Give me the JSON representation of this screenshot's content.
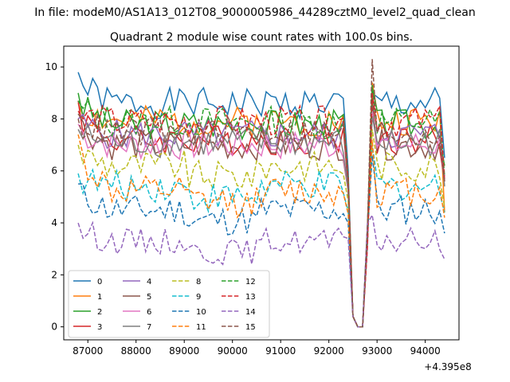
{
  "figure": {
    "suptitle": "In file: modeM0/AS1A13_012T08_9000005986_44289cztM0_level2_quad_clean",
    "offset_label": "+4.395e8"
  },
  "chart_data": {
    "type": "line",
    "title": "Quadrant 2 module wise count rates with 100.0s bins.",
    "xlabel": "",
    "ylabel": "",
    "xlim": [
      86500,
      94700
    ],
    "ylim": [
      -0.5,
      10.8
    ],
    "x_offset": 439500000,
    "x_ticks": [
      87000,
      88000,
      89000,
      90000,
      91000,
      92000,
      93000,
      94000
    ],
    "x_tick_labels": [
      "87000",
      "88000",
      "89000",
      "90000",
      "91000",
      "92000",
      "93000",
      "94000"
    ],
    "y_ticks": [
      0,
      2,
      4,
      6,
      8,
      10
    ],
    "y_tick_labels": [
      "0",
      "2",
      "4",
      "6",
      "8",
      "10"
    ],
    "grid": false,
    "legend": {
      "placement": "lower-left",
      "columns": 4
    },
    "x_start": 86800,
    "x_step": 100,
    "n_points": 77,
    "dip": {
      "x_points": [
        92400,
        92500,
        92600,
        92700,
        92800,
        92900
      ],
      "values": [
        3.5,
        0.4,
        0.0,
        0.0,
        4.5,
        null
      ]
    },
    "series": [
      {
        "name": "0",
        "color": "#1f77b4",
        "dash": "solid",
        "base": 8.6,
        "amp": 0.3,
        "seed": 1,
        "start": 9.8,
        "end": 6.5,
        "peak": 9.0
      },
      {
        "name": "1",
        "color": "#ff7f0e",
        "dash": "solid",
        "base": 7.9,
        "amp": 0.3,
        "seed": 2,
        "start": 8.6,
        "end": 4.4,
        "peak": 9.4
      },
      {
        "name": "2",
        "color": "#2ca02c",
        "dash": "solid",
        "base": 7.8,
        "amp": 0.3,
        "seed": 3,
        "start": 9.0,
        "end": 6.2,
        "peak": 9.2
      },
      {
        "name": "3",
        "color": "#d62728",
        "dash": "solid",
        "base": 7.2,
        "amp": 0.3,
        "seed": 4,
        "start": 8.7,
        "end": 5.6,
        "peak": 8.8
      },
      {
        "name": "4",
        "color": "#9467bd",
        "dash": "solid",
        "base": 7.4,
        "amp": 0.3,
        "seed": 5,
        "start": 8.0,
        "end": 5.6,
        "peak": 8.5
      },
      {
        "name": "5",
        "color": "#8c564b",
        "dash": "solid",
        "base": 7.0,
        "amp": 0.3,
        "seed": 6,
        "start": 8.2,
        "end": 5.8,
        "peak": 8.7
      },
      {
        "name": "6",
        "color": "#e377c2",
        "dash": "solid",
        "base": 7.0,
        "amp": 0.3,
        "seed": 7,
        "start": 7.8,
        "end": 5.7,
        "peak": 8.3
      },
      {
        "name": "7",
        "color": "#7f7f7f",
        "dash": "solid",
        "base": 7.1,
        "amp": 0.3,
        "seed": 8,
        "start": 7.6,
        "end": 5.4,
        "peak": 8.1
      },
      {
        "name": "8",
        "color": "#bcbd22",
        "dash": "dashed",
        "base": 6.2,
        "amp": 0.3,
        "seed": 9,
        "start": 7.0,
        "end": 4.6,
        "peak": 7.6
      },
      {
        "name": "9",
        "color": "#17becf",
        "dash": "dashed",
        "base": 5.4,
        "amp": 0.3,
        "seed": 10,
        "start": 5.9,
        "end": 4.4,
        "peak": 7.0
      },
      {
        "name": "10",
        "color": "#1f77b4",
        "dash": "dashed",
        "base": 4.5,
        "amp": 0.3,
        "seed": 11,
        "start": 5.5,
        "end": 3.6,
        "peak": 6.6
      },
      {
        "name": "11",
        "color": "#ff7f0e",
        "dash": "dashed",
        "base": 5.2,
        "amp": 0.3,
        "seed": 12,
        "start": 7.4,
        "end": 4.2,
        "peak": 7.2
      },
      {
        "name": "12",
        "color": "#2ca02c",
        "dash": "dashed",
        "base": 7.9,
        "amp": 0.3,
        "seed": 13,
        "start": 8.7,
        "end": 5.8,
        "peak": 9.3
      },
      {
        "name": "13",
        "color": "#d62728",
        "dash": "dashed",
        "base": 7.9,
        "amp": 0.3,
        "seed": 14,
        "start": 8.3,
        "end": 5.6,
        "peak": 9.0
      },
      {
        "name": "14",
        "color": "#9467bd",
        "dash": "dashed",
        "base": 3.3,
        "amp": 0.25,
        "seed": 15,
        "start": 4.0,
        "end": 2.6,
        "peak": 4.3
      },
      {
        "name": "15",
        "color": "#8c564b",
        "dash": "dashed",
        "base": 7.5,
        "amp": 0.3,
        "seed": 16,
        "start": 8.0,
        "end": 5.6,
        "peak": 10.3
      }
    ]
  }
}
